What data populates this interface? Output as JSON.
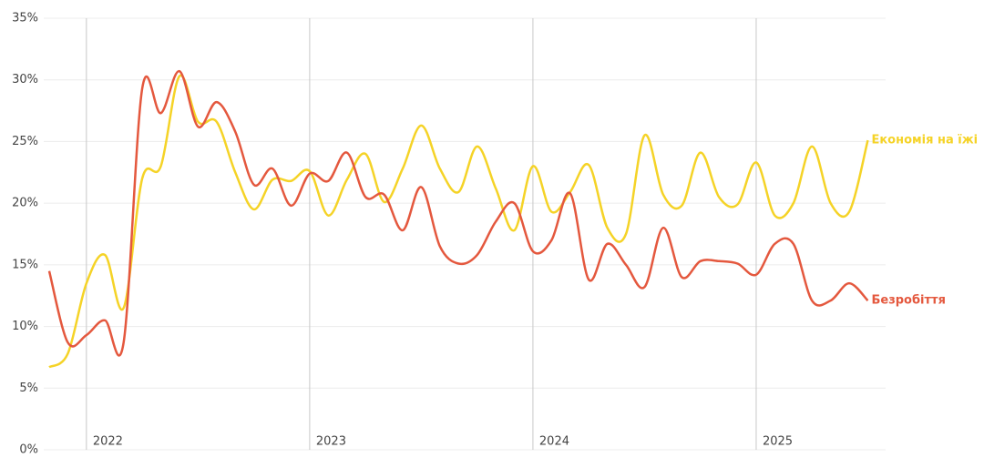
{
  "chart_data": {
    "type": "line",
    "categories": [
      null,
      null,
      "2022",
      null,
      null,
      null,
      null,
      null,
      null,
      null,
      null,
      null,
      null,
      null,
      "2023",
      null,
      null,
      null,
      null,
      null,
      null,
      null,
      null,
      null,
      null,
      null,
      "2024",
      null,
      null,
      null,
      null,
      null,
      null,
      null,
      null,
      null,
      null,
      null,
      "2025",
      null,
      null,
      null,
      null,
      null,
      null
    ],
    "series": [
      {
        "name": "Економія на їжі",
        "color": "#f5d327",
        "values": [
          6.7,
          7.8,
          13.5,
          15.8,
          11.5,
          22.0,
          23.0,
          30.3,
          26.6,
          26.6,
          22.5,
          19.5,
          21.9,
          21.8,
          22.6,
          19.0,
          21.9,
          24.0,
          20.1,
          22.8,
          26.3,
          22.8,
          20.9,
          24.6,
          21.2,
          17.8,
          23.0,
          19.3,
          20.9,
          23.1,
          18.0,
          17.5,
          25.5,
          20.7,
          19.8,
          24.1,
          20.5,
          19.9,
          23.3,
          19.0,
          20.0,
          24.6,
          20.0,
          19.3,
          25.1
        ]
      },
      {
        "name": "Безробіття",
        "color": "#e4583e",
        "values": [
          14.5,
          8.7,
          9.3,
          10.5,
          8.7,
          29.3,
          27.3,
          30.7,
          26.2,
          28.2,
          25.8,
          21.5,
          22.8,
          19.8,
          22.4,
          21.8,
          24.1,
          20.5,
          20.7,
          17.8,
          21.3,
          16.5,
          15.1,
          15.8,
          18.5,
          20.0,
          16.1,
          17.0,
          20.8,
          13.8,
          16.7,
          15.0,
          13.2,
          18.0,
          14.0,
          15.3,
          15.3,
          15.1,
          14.2,
          16.7,
          16.7,
          12.1,
          12.1,
          13.5,
          12.1
        ]
      }
    ],
    "ylim": [
      0,
      35
    ],
    "yticks": [
      {
        "value": 0,
        "label": "0%"
      },
      {
        "value": 5,
        "label": "5%"
      },
      {
        "value": 10,
        "label": "10%"
      },
      {
        "value": 15,
        "label": "15%"
      },
      {
        "value": 20,
        "label": "20%"
      },
      {
        "value": 25,
        "label": "25%"
      },
      {
        "value": 30,
        "label": "30%"
      },
      {
        "value": 35,
        "label": "35%"
      }
    ],
    "grid": true
  }
}
